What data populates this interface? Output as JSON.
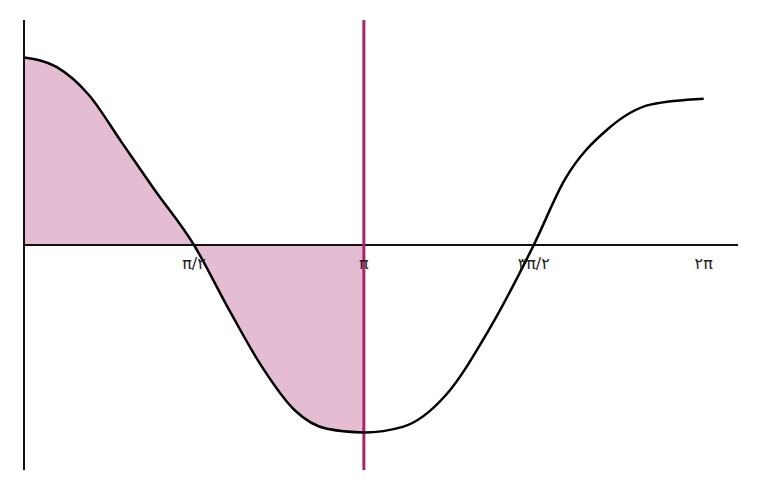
{
  "chart_data": {
    "type": "line",
    "x": [
      0,
      0.3,
      0.6,
      0.9,
      1.2,
      1.571,
      1.9,
      2.2,
      2.5,
      2.8,
      3.1416,
      3.5,
      3.9,
      4.3,
      4.712,
      5.0,
      5.4,
      5.8,
      6.283
    ],
    "values": [
      1.0,
      0.95,
      0.8,
      0.55,
      0.3,
      0,
      -0.35,
      -0.65,
      -0.88,
      -0.98,
      -1.0,
      -0.97,
      -0.8,
      -0.45,
      0,
      0.35,
      0.62,
      0.75,
      0.78
    ],
    "color": "#000000",
    "xlim": [
      0,
      6.6
    ],
    "xticks": [
      {
        "value": 1.571,
        "label": "π/۲"
      },
      {
        "value": 3.1416,
        "label": "π"
      },
      {
        "value": 4.712,
        "label": "۳π/۲"
      },
      {
        "value": 6.283,
        "label": "۲π"
      }
    ],
    "ylim": [
      -1.2,
      1.2
    ],
    "yticks": [],
    "tick_labels": "x",
    "grid": false,
    "shaded_region": {
      "from": 0,
      "to": 3.1416,
      "color": "#a8246e"
    }
  }
}
